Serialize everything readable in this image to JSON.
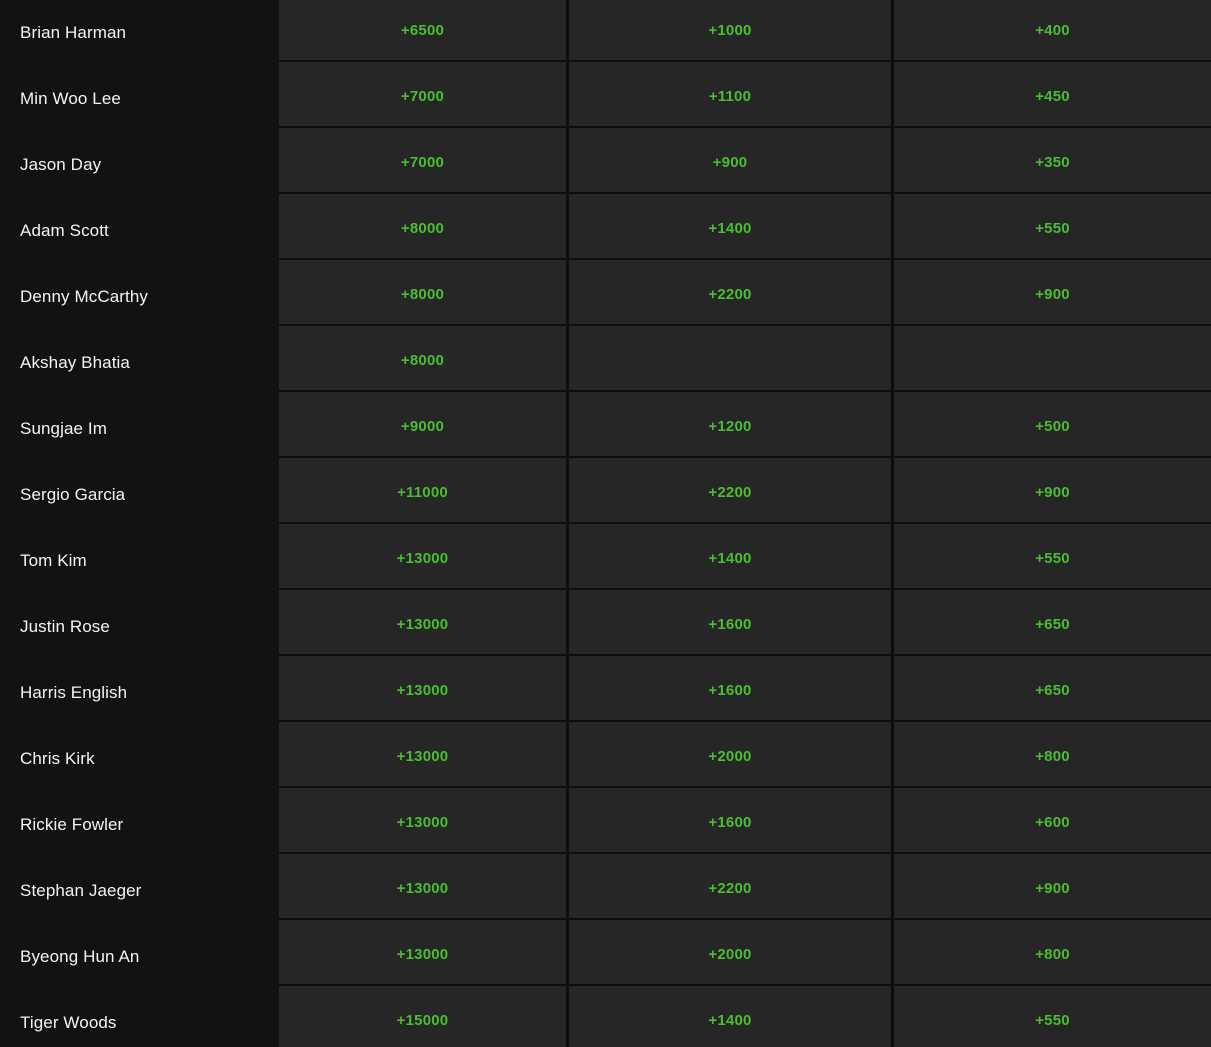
{
  "board": {
    "rows": [
      {
        "player": "Brian Harman",
        "odds": [
          "+6500",
          "+1000",
          "+400"
        ]
      },
      {
        "player": "Min Woo Lee",
        "odds": [
          "+7000",
          "+1100",
          "+450"
        ]
      },
      {
        "player": "Jason Day",
        "odds": [
          "+7000",
          "+900",
          "+350"
        ]
      },
      {
        "player": "Adam Scott",
        "odds": [
          "+8000",
          "+1400",
          "+550"
        ]
      },
      {
        "player": "Denny McCarthy",
        "odds": [
          "+8000",
          "+2200",
          "+900"
        ]
      },
      {
        "player": "Akshay Bhatia",
        "odds": [
          "+8000",
          "",
          ""
        ]
      },
      {
        "player": "Sungjae Im",
        "odds": [
          "+9000",
          "+1200",
          "+500"
        ]
      },
      {
        "player": "Sergio Garcia",
        "odds": [
          "+11000",
          "+2200",
          "+900"
        ]
      },
      {
        "player": "Tom Kim",
        "odds": [
          "+13000",
          "+1400",
          "+550"
        ]
      },
      {
        "player": "Justin Rose",
        "odds": [
          "+13000",
          "+1600",
          "+650"
        ]
      },
      {
        "player": "Harris English",
        "odds": [
          "+13000",
          "+1600",
          "+650"
        ]
      },
      {
        "player": "Chris Kirk",
        "odds": [
          "+13000",
          "+2000",
          "+800"
        ]
      },
      {
        "player": "Rickie Fowler",
        "odds": [
          "+13000",
          "+1600",
          "+600"
        ]
      },
      {
        "player": "Stephan Jaeger",
        "odds": [
          "+13000",
          "+2200",
          "+900"
        ]
      },
      {
        "player": "Byeong Hun An",
        "odds": [
          "+13000",
          "+2000",
          "+800"
        ]
      },
      {
        "player": "Tiger Woods",
        "odds": [
          "+15000",
          "+1400",
          "+550"
        ]
      }
    ]
  },
  "colors": {
    "odds_green": "#4abd32",
    "cell_background": "#262626",
    "sidebar_background": "#121212",
    "divider": "#0d0d0d",
    "player_text": "#f4f4f4"
  }
}
